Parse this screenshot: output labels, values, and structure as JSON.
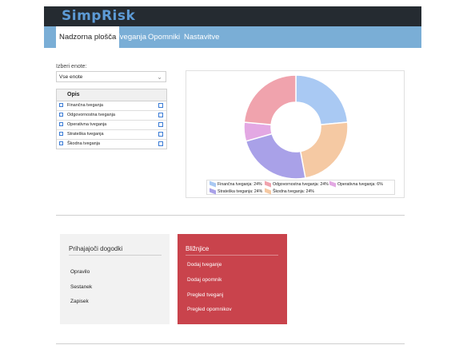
{
  "app": {
    "logo": "SimpRisk"
  },
  "nav": {
    "tabs": [
      {
        "label": "Nadzorna plošča",
        "active": true
      },
      {
        "label": "Tveganja"
      },
      {
        "label": "Opomniki"
      },
      {
        "label": "Nastavitve"
      }
    ]
  },
  "filter": {
    "label": "Izberi enote:",
    "selected": "Vse enote"
  },
  "opis": {
    "header": "Opis",
    "rows": [
      "Finančna tveganja",
      "Odgovornostna tveganja",
      "Operativna tveganja",
      "Strateška tveganja",
      "Škodna tveganja"
    ]
  },
  "chart_data": {
    "type": "pie",
    "donut": true,
    "slices": [
      {
        "label": "Finančna tveganja: 24%",
        "value": 24,
        "color": "#a9c9f3"
      },
      {
        "label": "Škodna tveganja: 24%",
        "value": 24,
        "color": "#f5c9a3"
      },
      {
        "label": "Strateška tveganja: 24%",
        "value": 24,
        "color": "#a9a1e8"
      },
      {
        "label": "Operativna tveganja: 6%",
        "value": 6,
        "color": "#e3a8e3"
      },
      {
        "label": "Odgovornostna tveganja: 24%",
        "value": 24,
        "color": "#f0a3ad"
      }
    ],
    "legend": [
      {
        "label": "Finančna tveganja: 24%",
        "color": "#a9c9f3"
      },
      {
        "label": "Odgovornostna tveganja: 24%",
        "color": "#f0a3ad"
      },
      {
        "label": "Operativna tveganja: 6%",
        "color": "#e3a8e3"
      },
      {
        "label": "Strateška tveganja: 24%",
        "color": "#a9a1e8"
      },
      {
        "label": "Škodna tveganja: 24%",
        "color": "#f5c9a3"
      }
    ],
    "legend_position": "bottom"
  },
  "events": {
    "title": "Prihajajoči dogodki",
    "items": [
      "Opravilo",
      "Sestanek",
      "Zapisek"
    ]
  },
  "shortcuts": {
    "title": "Bližnjice",
    "items": [
      "Dodaj tveganje",
      "Dodaj opomnik",
      "Pregled tveganj",
      "Pregled opomnikov"
    ]
  }
}
